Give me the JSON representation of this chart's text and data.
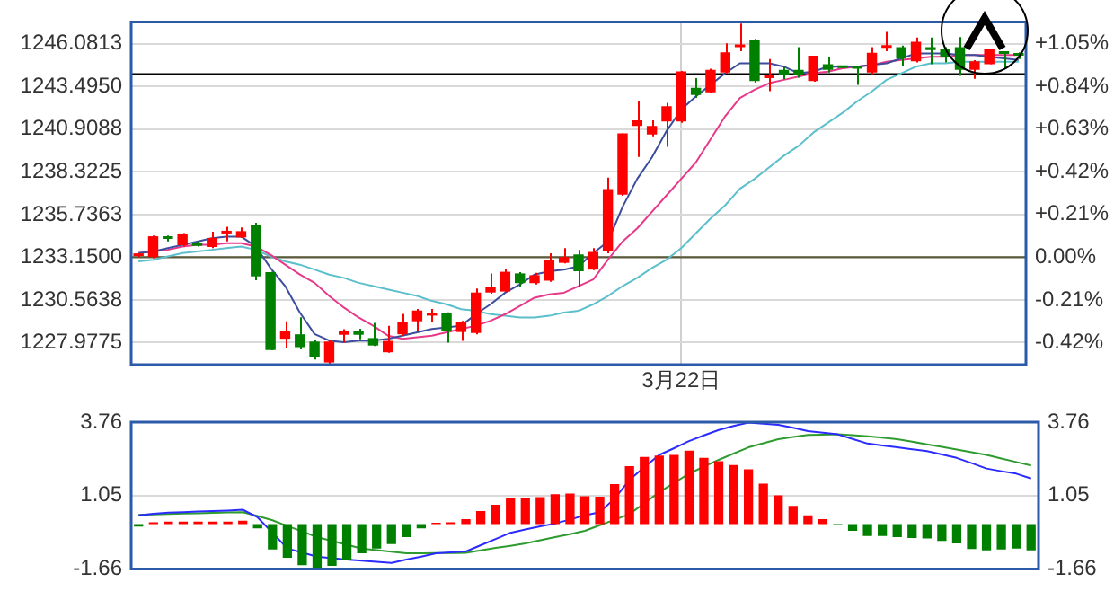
{
  "chart_data": [
    {
      "type": "candlestick",
      "categories": [
        null,
        null,
        null,
        null,
        null,
        null,
        null,
        null,
        null,
        null,
        null,
        null,
        null,
        null,
        null,
        null,
        null,
        null,
        null,
        null,
        null,
        null,
        null,
        null,
        null,
        null,
        null,
        null,
        null,
        null,
        null,
        null,
        null,
        null,
        null,
        null,
        null,
        "3月22日",
        null,
        null,
        null,
        null,
        null,
        null,
        null,
        null,
        null,
        null,
        null,
        null,
        null,
        null,
        null,
        null,
        null,
        null,
        null,
        null,
        null,
        null,
        null
      ],
      "ohlc": [
        [
          1233.22,
          1233.35,
          1233.15,
          1233.28
        ],
        [
          1233.16,
          1234.47,
          1233.09,
          1234.42
        ],
        [
          1234.32,
          1234.47,
          1234.11,
          1234.26
        ],
        [
          1233.88,
          1234.62,
          1233.8,
          1234.59
        ],
        [
          1234.01,
          1234.11,
          1233.8,
          1233.84
        ],
        [
          1233.77,
          1234.69,
          1233.7,
          1234.32
        ],
        [
          1234.59,
          1235.0,
          1234.11,
          1234.73
        ],
        [
          1234.35,
          1234.96,
          1234.32,
          1234.73
        ],
        [
          1235.13,
          1235.24,
          1231.76,
          1231.99
        ],
        [
          1232.24,
          1232.27,
          1227.51,
          1227.53
        ],
        [
          1228.21,
          1229.27,
          1227.67,
          1228.69
        ],
        [
          1228.48,
          1229.51,
          1227.56,
          1227.7
        ],
        [
          1228.04,
          1228.11,
          1226.95,
          1227.12
        ],
        [
          1226.77,
          1228.11,
          1226.67,
          1228.04
        ],
        [
          1228.45,
          1228.79,
          1227.97,
          1228.69
        ],
        [
          1228.69,
          1228.82,
          1228.18,
          1228.45
        ],
        [
          1228.25,
          1229.17,
          1227.77,
          1227.8
        ],
        [
          1227.39,
          1229.0,
          1227.36,
          1228.08
        ],
        [
          1228.48,
          1229.71,
          1228.38,
          1229.2
        ],
        [
          1229.27,
          1230.02,
          1228.69,
          1229.92
        ],
        [
          1229.61,
          1230.02,
          1229.2,
          1229.71
        ],
        [
          1229.78,
          1229.81,
          1227.97,
          1228.66
        ],
        [
          1228.62,
          1229.3,
          1228.08,
          1229.2
        ],
        [
          1228.56,
          1231.25,
          1228.48,
          1231.01
        ],
        [
          1231.01,
          1232.17,
          1230.94,
          1231.35
        ],
        [
          1231.07,
          1232.47,
          1231.04,
          1232.27
        ],
        [
          1232.17,
          1232.24,
          1231.35,
          1231.58
        ],
        [
          1231.58,
          1232.2,
          1231.5,
          1232.06
        ],
        [
          1231.73,
          1233.39,
          1231.66,
          1232.96
        ],
        [
          1232.81,
          1233.7,
          1232.78,
          1233.16
        ],
        [
          1233.32,
          1233.6,
          1231.38,
          1232.3
        ],
        [
          1232.4,
          1233.7,
          1232.37,
          1233.47
        ],
        [
          1233.5,
          1237.97,
          1233.39,
          1237.28
        ],
        [
          1236.94,
          1240.66,
          1236.87,
          1240.66
        ],
        [
          1241.1,
          1242.6,
          1239.23,
          1241.45
        ],
        [
          1240.59,
          1241.45,
          1240.48,
          1241.1
        ],
        [
          1241.37,
          1242.5,
          1239.84,
          1242.3
        ],
        [
          1241.37,
          1244.44,
          1241.3,
          1244.41
        ],
        [
          1243.42,
          1244.0,
          1242.81,
          1242.98
        ],
        [
          1243.14,
          1244.58,
          1243.11,
          1244.51
        ],
        [
          1244.34,
          1246.11,
          1244.29,
          1245.57
        ],
        [
          1245.88,
          1247.31,
          1245.64,
          1246.05
        ],
        [
          1246.32,
          1246.39,
          1243.73,
          1243.83
        ],
        [
          1244.0,
          1245.16,
          1243.22,
          1244.17
        ],
        [
          1244.51,
          1244.65,
          1243.93,
          1244.17
        ],
        [
          1244.51,
          1245.88,
          1244.03,
          1244.17
        ],
        [
          1243.83,
          1245.36,
          1243.78,
          1245.36
        ],
        [
          1244.85,
          1245.29,
          1244.34,
          1244.51
        ],
        [
          1244.65,
          1244.7,
          1244.6,
          1244.62
        ],
        [
          1244.65,
          1244.68,
          1243.59,
          1244.58
        ],
        [
          1244.34,
          1245.88,
          1244.24,
          1245.54
        ],
        [
          1245.84,
          1246.8,
          1245.64,
          1245.91
        ],
        [
          1245.88,
          1245.98,
          1244.75,
          1245.19
        ],
        [
          1245.03,
          1246.46,
          1244.95,
          1246.21
        ],
        [
          1245.88,
          1246.46,
          1244.85,
          1245.7
        ],
        [
          1245.77,
          1245.88,
          1244.95,
          1245.29
        ],
        [
          1245.88,
          1246.49,
          1244.14,
          1244.51
        ],
        [
          1244.51,
          1245.09,
          1243.96,
          1245.03
        ],
        [
          1244.85,
          1245.77,
          1244.85,
          1245.77
        ],
        [
          1245.54,
          1245.57,
          1244.58,
          1245.47
        ],
        [
          1245.52,
          1245.57,
          1245.16,
          1245.36
        ]
      ],
      "colors": [
        "#ff0000",
        "#ff0000",
        "#008000",
        "#ff0000",
        "#008000",
        "#ff0000",
        "#ff0000",
        "#ff0000",
        "#008000",
        "#008000",
        "#ff0000",
        "#008000",
        "#008000",
        "#ff0000",
        "#ff0000",
        "#008000",
        "#008000",
        "#ff0000",
        "#ff0000",
        "#ff0000",
        "#ff0000",
        "#008000",
        "#ff0000",
        "#ff0000",
        "#ff0000",
        "#ff0000",
        "#008000",
        "#ff0000",
        "#ff0000",
        "#ff0000",
        "#008000",
        "#ff0000",
        "#ff0000",
        "#ff0000",
        "#ff0000",
        "#ff0000",
        "#ff0000",
        "#ff0000",
        "#008000",
        "#ff0000",
        "#ff0000",
        "#ff0000",
        "#008000",
        "#ff0000",
        "#008000",
        "#008000",
        "#ff0000",
        "#008000",
        "#008000",
        "#008000",
        "#ff0000",
        "#ff0000",
        "#008000",
        "#ff0000",
        "#008000",
        "#008000",
        "#008000",
        "#ff0000",
        "#ff0000",
        "#008000",
        "#008000"
      ],
      "series": [
        {
          "type": "line",
          "color": "#3c4d9e",
          "values": [
            1233.4,
            1233.5,
            1233.7,
            1233.9,
            1234.1,
            1234.3,
            1234.4,
            1234.4,
            1233.8,
            1232.5,
            1231.4,
            1229.8,
            1228.5,
            1228.1,
            1228.0,
            1228.1,
            1228.1,
            1228.2,
            1228.4,
            1228.6,
            1228.8,
            1228.9,
            1229.0,
            1229.7,
            1230.3,
            1231.0,
            1231.5,
            1232.1,
            1232.3,
            1232.4,
            1232.6,
            1233.4,
            1234.1,
            1236.2,
            1237.9,
            1239.2,
            1240.8,
            1242.1,
            1242.9,
            1243.6,
            1244.3,
            1244.9,
            1244.9,
            1244.9,
            1244.7,
            1244.3,
            1244.4,
            1244.7,
            1244.7,
            1244.7,
            1244.8,
            1244.9,
            1245.2,
            1245.5,
            1245.5,
            1245.5,
            1245.4,
            1245.4,
            1245.3,
            1245.2,
            1245.1
          ]
        },
        {
          "type": "line",
          "color": "#e8388a",
          "values": [
            1233.4,
            1233.5,
            1233.6,
            1233.8,
            1233.9,
            1233.9,
            1234.0,
            1234.0,
            1233.8,
            1233.3,
            1232.7,
            1232.1,
            1231.6,
            1230.8,
            1230.1,
            1229.5,
            1229.0,
            1228.4,
            1228.2,
            1228.3,
            1228.4,
            1228.6,
            1228.8,
            1229.0,
            1229.3,
            1229.7,
            1230.2,
            1230.7,
            1230.9,
            1231.0,
            1231.4,
            1231.8,
            1233.0,
            1234.1,
            1234.9,
            1235.9,
            1236.9,
            1237.9,
            1238.9,
            1240.3,
            1241.7,
            1242.8,
            1243.3,
            1243.7,
            1243.9,
            1244.1,
            1244.3,
            1244.4,
            1244.6,
            1244.7,
            1244.8,
            1245.0,
            1245.1,
            1245.2,
            1245.3,
            1245.3,
            1245.4,
            1245.4,
            1245.4,
            1245.4,
            1245.4
          ]
        },
        {
          "type": "line",
          "color": "#5bbfcc",
          "values": [
            1232.9,
            1233.0,
            1233.2,
            1233.4,
            1233.5,
            1233.6,
            1233.7,
            1233.8,
            1233.6,
            1233.2,
            1232.9,
            1232.7,
            1232.4,
            1232.1,
            1231.9,
            1231.6,
            1231.4,
            1231.2,
            1231.0,
            1230.8,
            1230.5,
            1230.3,
            1230.0,
            1229.9,
            1229.7,
            1229.6,
            1229.5,
            1229.5,
            1229.6,
            1229.8,
            1229.9,
            1230.3,
            1230.8,
            1231.4,
            1231.9,
            1232.5,
            1233.0,
            1233.7,
            1234.6,
            1235.5,
            1236.3,
            1237.3,
            1237.9,
            1238.6,
            1239.3,
            1239.9,
            1240.7,
            1241.3,
            1241.9,
            1242.6,
            1243.2,
            1243.9,
            1244.3,
            1244.7,
            1244.9,
            1244.9,
            1245.0,
            1245.0,
            1245.0,
            1245.0,
            1245.0
          ]
        }
      ],
      "ylim": [
        1226.64,
        1247.41
      ],
      "yticks": [
        1227.9775,
        1230.5638,
        {
          "value": 1233.15,
          "label": "1233.1500"
        },
        1235.7363,
        1238.3225,
        1240.9088,
        {
          "value": 1243.495,
          "label": "1243.4950"
        },
        1246.0813
      ],
      "y2lim": [
        -0.528,
        1.156
      ],
      "y2ticks": [
        {
          "value": -0.42,
          "label": "-0.42%"
        },
        {
          "value": -0.21,
          "label": "-0.21%"
        },
        {
          "value": 0,
          "label": "0.00%"
        },
        {
          "value": 0.21,
          "label": "+0.21%"
        },
        {
          "value": 0.42,
          "label": "+0.42%"
        },
        {
          "value": 0.63,
          "label": "+0.63%"
        },
        {
          "value": 0.84,
          "label": "+0.84%"
        },
        {
          "value": 1.05,
          "label": "+1.05%"
        }
      ],
      "ref_lines": [
        {
          "axis": "y",
          "value": 1244.24,
          "color": "#000000"
        },
        {
          "axis": "y",
          "value": 1233.15,
          "color": "#5b5b3b"
        }
      ],
      "grid": true
    },
    {
      "type": "bar",
      "categories": [
        null,
        null,
        null,
        null,
        null,
        null,
        null,
        null,
        null,
        null,
        null,
        null,
        null,
        null,
        null,
        null,
        null,
        null,
        null,
        null,
        null,
        null,
        null,
        null,
        null,
        null,
        null,
        null,
        null,
        null,
        null,
        null,
        null,
        null,
        null,
        null,
        null,
        null,
        null,
        null,
        null,
        null,
        null,
        null,
        null,
        null,
        null,
        null,
        null,
        null,
        null,
        null,
        null,
        null,
        null,
        null,
        null,
        null,
        null,
        null,
        null
      ],
      "series": [
        {
          "type": "bar",
          "values": [
            -0.09,
            0.07,
            0.09,
            0.09,
            0.09,
            0.09,
            0.09,
            0.12,
            -0.16,
            -0.94,
            -1.24,
            -1.52,
            -1.65,
            -1.54,
            -1.31,
            -1.08,
            -0.9,
            -0.74,
            -0.48,
            -0.16,
            0.05,
            0.07,
            0.18,
            0.48,
            0.71,
            0.94,
            0.94,
            0.99,
            1.1,
            1.13,
            1.03,
            1.01,
            1.47,
            2.14,
            2.48,
            2.53,
            2.55,
            2.71,
            2.44,
            2.32,
            2.18,
            2.02,
            1.49,
            1.06,
            0.67,
            0.32,
            0.18,
            -0.05,
            -0.25,
            -0.44,
            -0.44,
            -0.48,
            -0.51,
            -0.53,
            -0.62,
            -0.71,
            -0.92,
            -0.97,
            -0.94,
            -0.9,
            -0.97
          ],
          "colors": [
            "#008000",
            "#ff0000",
            "#ff0000",
            "#ff0000",
            "#ff0000",
            "#ff0000",
            "#ff0000",
            "#ff0000",
            "#008000",
            "#008000",
            "#008000",
            "#008000",
            "#008000",
            "#008000",
            "#008000",
            "#008000",
            "#008000",
            "#008000",
            "#008000",
            "#008000",
            "#ff0000",
            "#ff0000",
            "#ff0000",
            "#ff0000",
            "#ff0000",
            "#ff0000",
            "#ff0000",
            "#ff0000",
            "#ff0000",
            "#ff0000",
            "#ff0000",
            "#ff0000",
            "#ff0000",
            "#ff0000",
            "#ff0000",
            "#ff0000",
            "#ff0000",
            "#ff0000",
            "#ff0000",
            "#ff0000",
            "#ff0000",
            "#ff0000",
            "#ff0000",
            "#ff0000",
            "#ff0000",
            "#ff0000",
            "#ff0000",
            "#008000",
            "#008000",
            "#008000",
            "#008000",
            "#008000",
            "#008000",
            "#008000",
            "#008000",
            "#008000",
            "#008000",
            "#008000",
            "#008000",
            "#008000",
            "#008000"
          ]
        },
        {
          "type": "line",
          "color": "#2b2bff",
          "values": [
            0.32,
            0.38,
            0.42,
            0.44,
            0.46,
            0.48,
            0.5,
            0.53,
            0.25,
            -0.32,
            -0.9,
            -1.05,
            -1.2,
            -1.26,
            -1.31,
            -1.35,
            -1.39,
            -1.43,
            -1.31,
            -1.2,
            -1.08,
            -1.04,
            -1.01,
            -0.78,
            -0.55,
            -0.32,
            -0.2,
            -0.08,
            0.02,
            0.17,
            0.32,
            0.44,
            0.94,
            1.63,
            2.1,
            2.55,
            2.8,
            3.06,
            3.27,
            3.47,
            3.62,
            3.74,
            3.7,
            3.66,
            3.55,
            3.43,
            3.37,
            3.31,
            3.14,
            2.97,
            2.9,
            2.83,
            2.76,
            2.69,
            2.57,
            2.44,
            2.25,
            2.05,
            1.95,
            1.86,
            1.68
          ]
        },
        {
          "type": "line",
          "color": "#2e9b2e",
          "values": [
            0.34,
            0.36,
            0.37,
            0.39,
            0.4,
            0.41,
            0.43,
            0.44,
            0.3,
            0.14,
            -0.07,
            -0.27,
            -0.48,
            -0.62,
            -0.76,
            -0.9,
            -0.96,
            -1.02,
            -1.08,
            -1.08,
            -1.07,
            -1.07,
            -1.06,
            -0.97,
            -0.88,
            -0.8,
            -0.71,
            -0.6,
            -0.48,
            -0.37,
            -0.25,
            -0.04,
            0.16,
            0.37,
            0.77,
            1.17,
            1.52,
            1.86,
            2.12,
            2.37,
            2.6,
            2.83,
            2.98,
            3.13,
            3.21,
            3.29,
            3.3,
            3.31,
            3.28,
            3.24,
            3.19,
            3.13,
            3.04,
            2.94,
            2.85,
            2.75,
            2.65,
            2.55,
            2.42,
            2.29,
            2.16
          ]
        }
      ],
      "ylim": [
        -1.66,
        3.76
      ],
      "yticks": [
        -1.66,
        1.05,
        3.76
      ],
      "y2lim": [
        -1.66,
        3.76
      ],
      "y2ticks": [
        -1.66,
        1.05,
        3.76
      ],
      "grid": "y",
      "tick_labels": "y"
    }
  ]
}
